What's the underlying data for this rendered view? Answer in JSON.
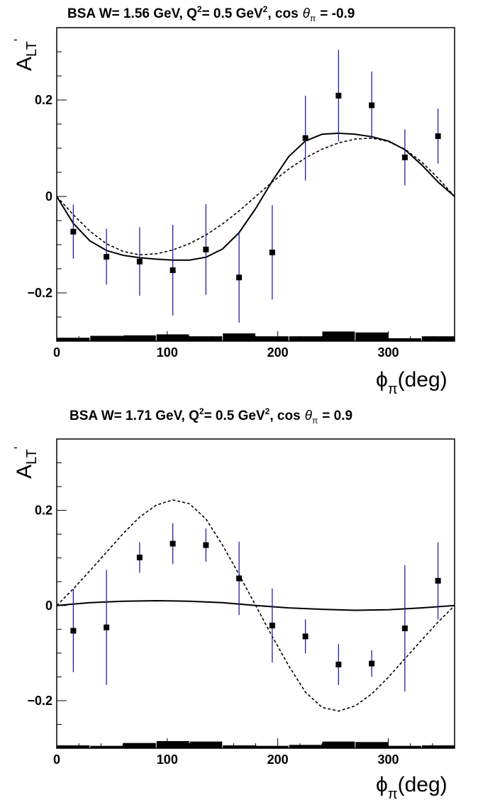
{
  "chart_data": [
    {
      "type": "scatter",
      "title": {
        "prefix": "BSA W= 1.56 GeV, Q",
        "sup": "2",
        "middle": "= 0.5 GeV",
        "sup2": "2",
        "cos": ", cos",
        "theta": "θ",
        "theta_sub": "π",
        "suffix": "= -0.9"
      },
      "ylabel": {
        "main": "A",
        "sub": "LT",
        "prime": "'"
      },
      "xlabel": {
        "phi": "ϕ",
        "sub": "π",
        "unit": "(deg)"
      },
      "xlim": [
        0,
        360
      ],
      "ylim": [
        -0.3,
        0.35
      ],
      "xticks": [
        0,
        100,
        200,
        300
      ],
      "xtick_labels": [
        "0",
        "100",
        "200",
        "300"
      ],
      "yticks": [
        -0.2,
        0,
        0.2
      ],
      "ytick_labels": [
        "−0.2",
        "0",
        "0.2"
      ],
      "points": [
        {
          "x": 15,
          "y": -0.073,
          "err": 0.056
        },
        {
          "x": 45,
          "y": -0.125,
          "err": 0.058
        },
        {
          "x": 75,
          "y": -0.135,
          "err": 0.071
        },
        {
          "x": 105,
          "y": -0.153,
          "err": 0.094
        },
        {
          "x": 135,
          "y": -0.11,
          "err": 0.094
        },
        {
          "x": 165,
          "y": -0.168,
          "err": 0.094
        },
        {
          "x": 195,
          "y": -0.116,
          "err": 0.098
        },
        {
          "x": 225,
          "y": 0.121,
          "err": 0.088
        },
        {
          "x": 255,
          "y": 0.209,
          "err": 0.095
        },
        {
          "x": 285,
          "y": 0.189,
          "err": 0.07
        },
        {
          "x": 315,
          "y": 0.081,
          "err": 0.058
        },
        {
          "x": 345,
          "y": 0.125,
          "err": 0.057
        }
      ],
      "curve_solid": {
        "x": [
          0,
          15,
          30,
          45,
          60,
          75,
          90,
          105,
          120,
          135,
          150,
          165,
          180,
          195,
          210,
          225,
          240,
          255,
          270,
          285,
          300,
          315,
          330,
          345,
          360
        ],
        "y": [
          0,
          -0.056,
          -0.092,
          -0.112,
          -0.122,
          -0.127,
          -0.13,
          -0.132,
          -0.132,
          -0.126,
          -0.109,
          -0.075,
          -0.025,
          0.032,
          0.083,
          0.115,
          0.129,
          0.131,
          0.129,
          0.124,
          0.115,
          0.097,
          0.066,
          0.03,
          0
        ]
      },
      "curve_dashed": {
        "x": [
          0,
          15,
          30,
          45,
          60,
          75,
          90,
          105,
          120,
          135,
          150,
          165,
          180,
          195,
          210,
          225,
          240,
          255,
          270,
          285,
          300,
          315,
          330,
          345,
          360
        ],
        "y": [
          0,
          -0.038,
          -0.072,
          -0.098,
          -0.114,
          -0.121,
          -0.119,
          -0.111,
          -0.098,
          -0.08,
          -0.057,
          -0.03,
          0,
          0.03,
          0.057,
          0.08,
          0.098,
          0.111,
          0.119,
          0.121,
          0.114,
          0.098,
          0.072,
          0.038,
          0
        ]
      },
      "systematics": [
        {
          "x0": 0,
          "x1": 30,
          "h": 0.007
        },
        {
          "x0": 30,
          "x1": 60,
          "h": 0.011
        },
        {
          "x0": 60,
          "x1": 90,
          "h": 0.012
        },
        {
          "x0": 90,
          "x1": 120,
          "h": 0.014
        },
        {
          "x0": 120,
          "x1": 150,
          "h": 0.01
        },
        {
          "x0": 150,
          "x1": 180,
          "h": 0.016
        },
        {
          "x0": 180,
          "x1": 210,
          "h": 0.01
        },
        {
          "x0": 210,
          "x1": 240,
          "h": 0.01
        },
        {
          "x0": 240,
          "x1": 270,
          "h": 0.02
        },
        {
          "x0": 270,
          "x1": 300,
          "h": 0.018
        },
        {
          "x0": 300,
          "x1": 330,
          "h": 0.006
        },
        {
          "x0": 330,
          "x1": 360,
          "h": 0.01
        }
      ]
    },
    {
      "type": "scatter",
      "title": {
        "prefix": "BSA W= 1.71 GeV, Q",
        "sup": "2",
        "middle": "= 0.5 GeV",
        "sup2": "2",
        "cos": ", cos",
        "theta": "θ",
        "theta_sub": "π",
        "suffix": "= 0.9"
      },
      "ylabel": {
        "main": "A",
        "sub": "LT",
        "prime": "'"
      },
      "xlabel": {
        "phi": "ϕ",
        "sub": "π",
        "unit": "(deg)"
      },
      "xlim": [
        0,
        360
      ],
      "ylim": [
        -0.3,
        0.35
      ],
      "xticks": [
        0,
        100,
        200,
        300
      ],
      "xtick_labels": [
        "0",
        "100",
        "200",
        "300"
      ],
      "yticks": [
        -0.2,
        0,
        0.2
      ],
      "ytick_labels": [
        "−0.2",
        "0",
        "0.2"
      ],
      "points": [
        {
          "x": 15,
          "y": -0.053,
          "err": 0.087
        },
        {
          "x": 45,
          "y": -0.046,
          "err": 0.121
        },
        {
          "x": 75,
          "y": 0.101,
          "err": 0.032
        },
        {
          "x": 105,
          "y": 0.13,
          "err": 0.043
        },
        {
          "x": 135,
          "y": 0.127,
          "err": 0.035
        },
        {
          "x": 165,
          "y": 0.057,
          "err": 0.077
        },
        {
          "x": 195,
          "y": -0.042,
          "err": 0.078
        },
        {
          "x": 225,
          "y": -0.065,
          "err": 0.036
        },
        {
          "x": 255,
          "y": -0.124,
          "err": 0.043
        },
        {
          "x": 285,
          "y": -0.122,
          "err": 0.028
        },
        {
          "x": 315,
          "y": -0.048,
          "err": 0.133
        },
        {
          "x": 345,
          "y": 0.052,
          "err": 0.081
        }
      ],
      "curve_solid": {
        "x": [
          0,
          30,
          60,
          90,
          120,
          150,
          180,
          210,
          240,
          270,
          300,
          330,
          360
        ],
        "y": [
          0,
          0.006,
          0.009,
          0.01,
          0.009,
          0.006,
          0,
          -0.005,
          -0.008,
          -0.01,
          -0.009,
          -0.005,
          0
        ]
      },
      "curve_dashed": {
        "x": [
          0,
          15,
          30,
          45,
          60,
          75,
          90,
          105,
          120,
          135,
          150,
          165,
          180,
          195,
          210,
          225,
          240,
          255,
          270,
          285,
          300,
          315,
          330,
          345,
          360
        ],
        "y": [
          0,
          0.035,
          0.073,
          0.112,
          0.151,
          0.186,
          0.211,
          0.222,
          0.214,
          0.182,
          0.127,
          0.065,
          0,
          -0.065,
          -0.127,
          -0.182,
          -0.214,
          -0.222,
          -0.211,
          -0.186,
          -0.151,
          -0.112,
          -0.073,
          -0.035,
          0
        ]
      },
      "systematics": [
        {
          "x0": 0,
          "x1": 30,
          "h": 0.006
        },
        {
          "x0": 30,
          "x1": 60,
          "h": 0.005
        },
        {
          "x0": 60,
          "x1": 90,
          "h": 0.011
        },
        {
          "x0": 90,
          "x1": 120,
          "h": 0.015
        },
        {
          "x0": 120,
          "x1": 150,
          "h": 0.014
        },
        {
          "x0": 150,
          "x1": 180,
          "h": 0.006
        },
        {
          "x0": 180,
          "x1": 210,
          "h": 0.005
        },
        {
          "x0": 210,
          "x1": 240,
          "h": 0.007
        },
        {
          "x0": 240,
          "x1": 270,
          "h": 0.014
        },
        {
          "x0": 270,
          "x1": 300,
          "h": 0.013
        },
        {
          "x0": 300,
          "x1": 330,
          "h": 0.005
        },
        {
          "x0": 330,
          "x1": 360,
          "h": 0.006
        }
      ]
    }
  ],
  "colors": {
    "error_bar": "#1f1fa8",
    "marker": "#000000",
    "curve": "#000000",
    "systematics": "#000000",
    "frame": "#000000"
  }
}
